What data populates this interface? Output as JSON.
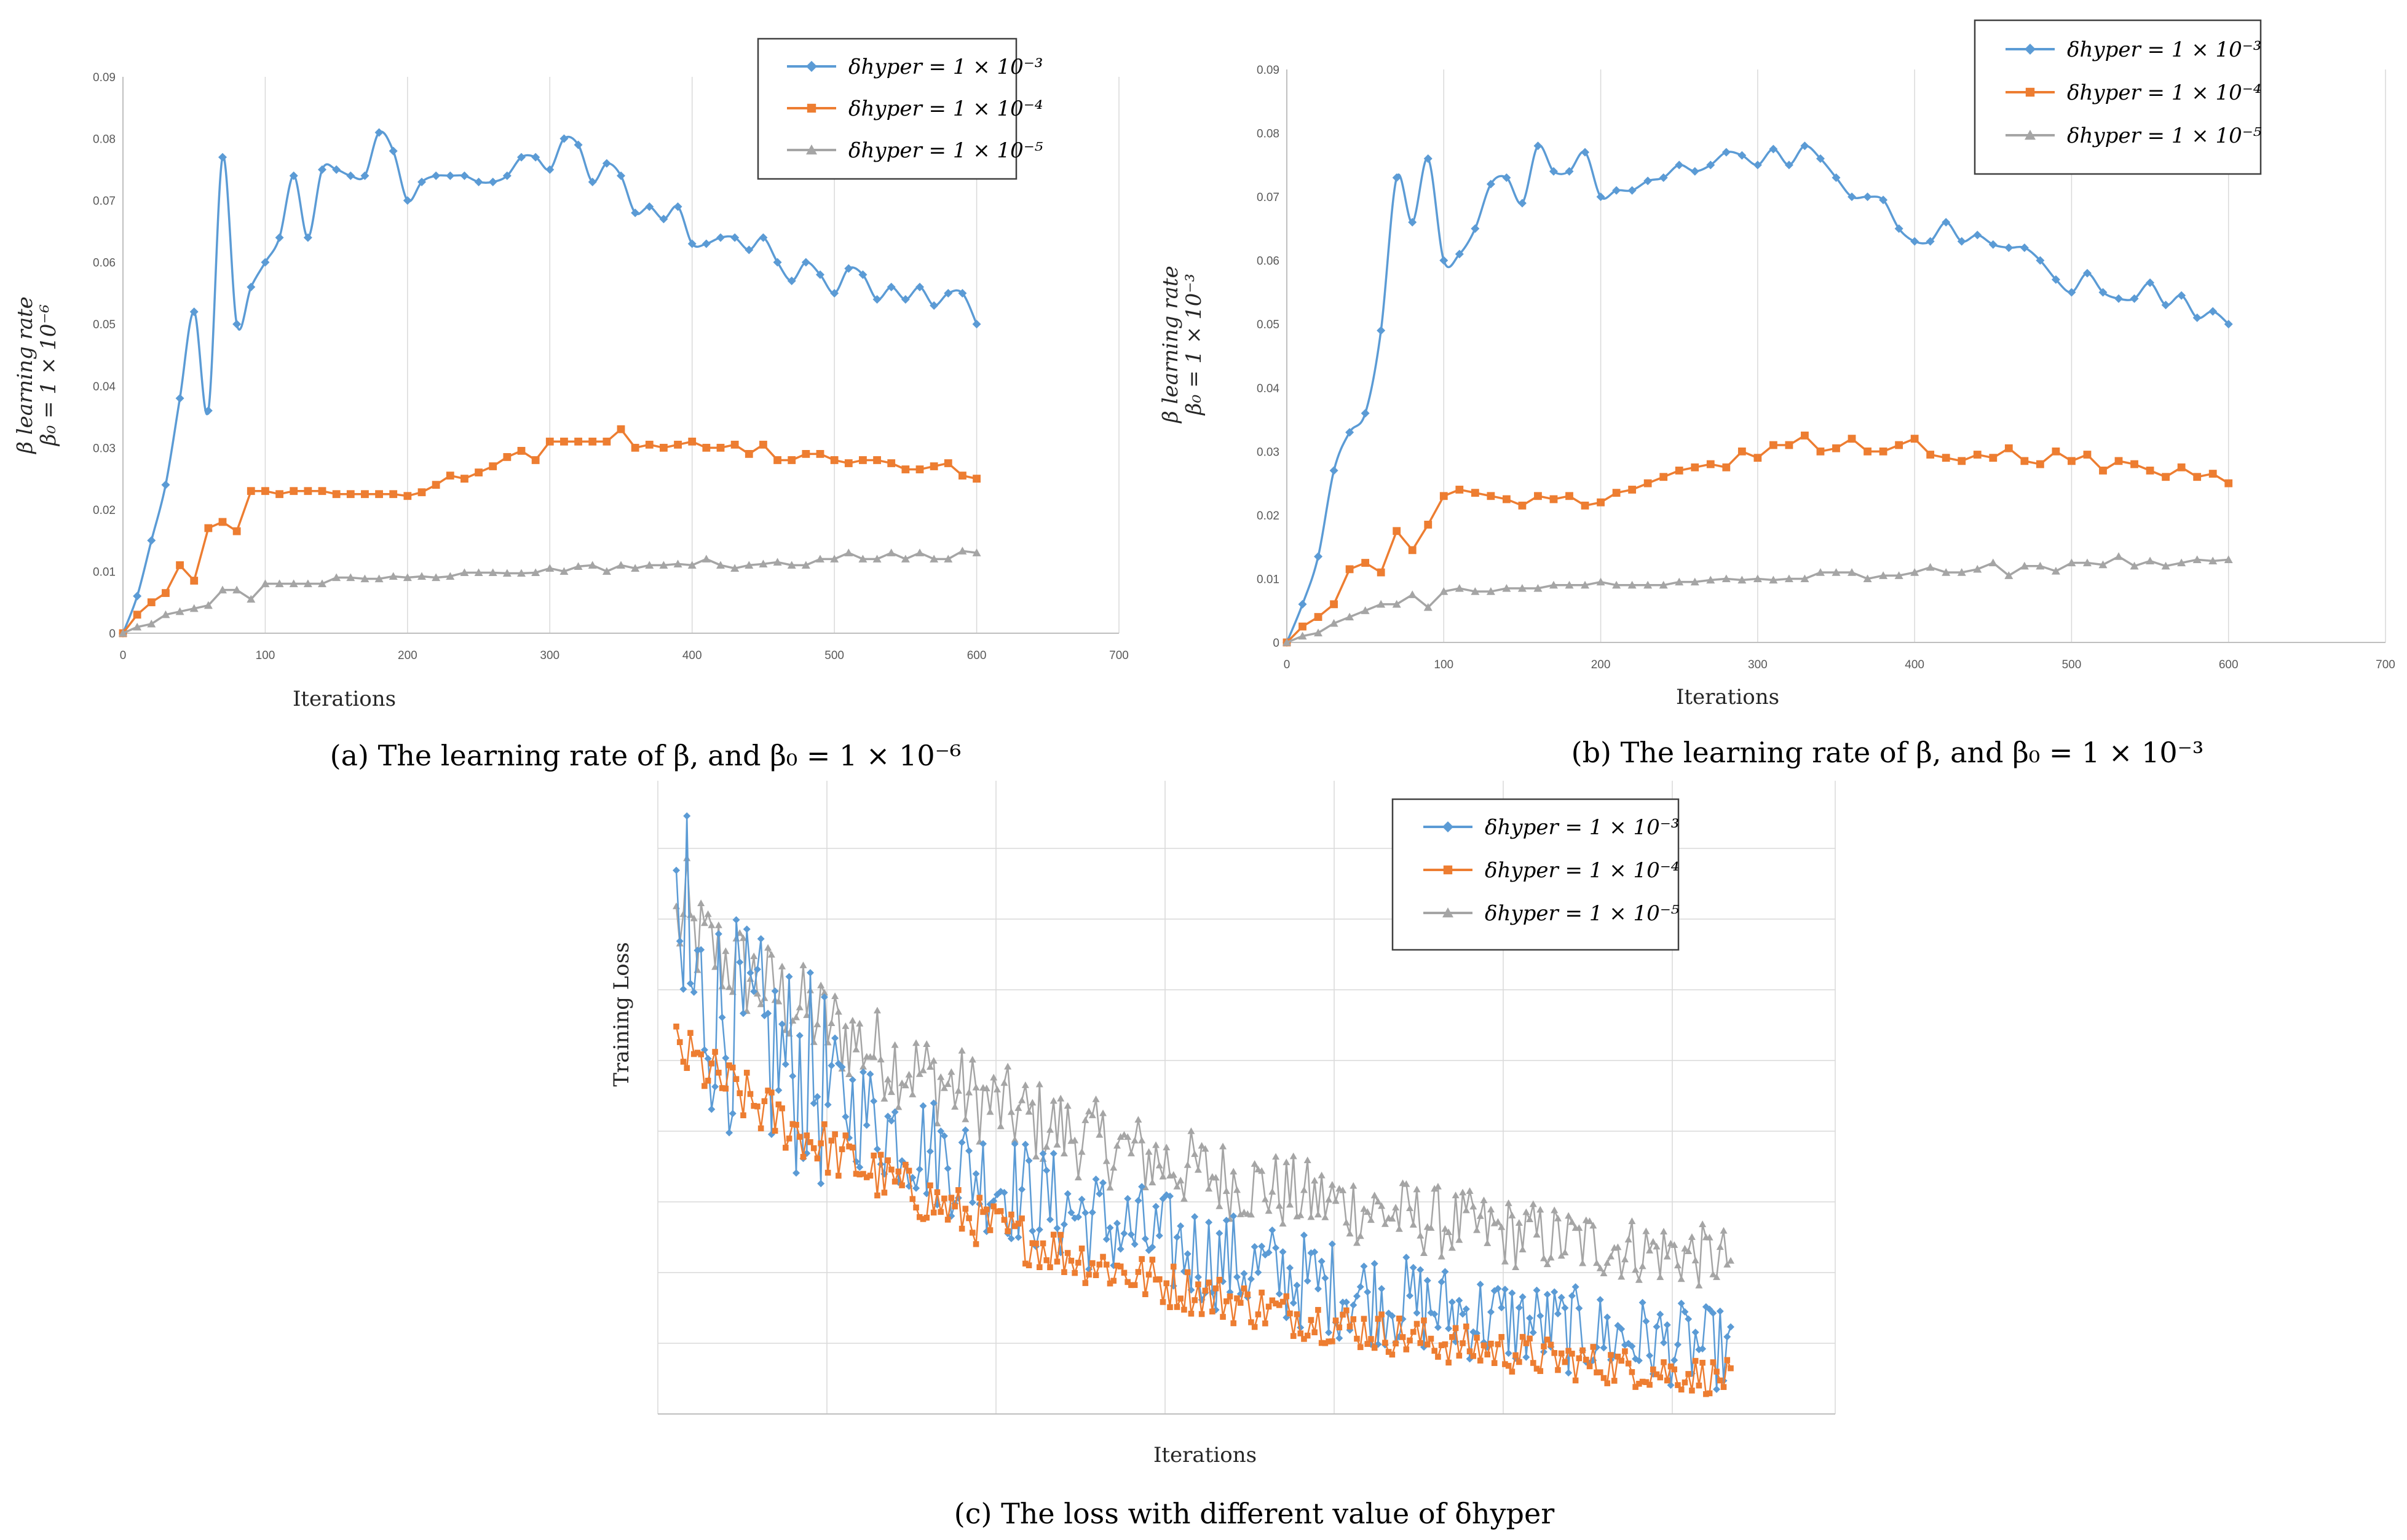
{
  "colors": {
    "series1": "#5B9BD5",
    "series2": "#ED7D31",
    "series3": "#A5A5A5",
    "grid": "#D9D9D9",
    "axis": "#BFBFBF"
  },
  "legend_labels": [
    "δhyper = 1 × 10⁻³",
    "δhyper = 1 × 10⁻⁴",
    "δhyper = 1 × 10⁻⁵"
  ],
  "chart_data": [
    {
      "type": "line",
      "caption": "(a) The learning rate of β, and β₀ = 1 × 10⁻⁶",
      "xlabel": "Iterations",
      "ylabel": "β learning rate",
      "ylabel2": "β₀ = 1 × 10⁻⁶",
      "xlim": [
        0,
        700
      ],
      "ylim": [
        0,
        0.09
      ],
      "xticks": [
        0,
        100,
        200,
        300,
        400,
        500,
        600,
        700
      ],
      "yticks": [
        0,
        0.01,
        0.02,
        0.03,
        0.04,
        0.05,
        0.06,
        0.07,
        0.08,
        0.09
      ],
      "ytick_labels": [
        "0",
        "0.01",
        "0.02",
        "0.03",
        "0.04",
        "0.05",
        "0.06",
        "0.07",
        "0.08",
        "0.09"
      ],
      "legend_position": "top-right",
      "grid": true,
      "x": [
        0,
        10,
        20,
        30,
        40,
        50,
        60,
        70,
        80,
        90,
        100,
        110,
        120,
        130,
        140,
        150,
        160,
        170,
        180,
        190,
        200,
        210,
        220,
        230,
        240,
        250,
        260,
        270,
        280,
        290,
        300,
        310,
        320,
        330,
        340,
        350,
        360,
        370,
        380,
        390,
        400,
        410,
        420,
        430,
        440,
        450,
        460,
        470,
        480,
        490,
        500,
        510,
        520,
        530,
        540,
        550,
        560,
        570,
        580,
        590,
        600
      ],
      "series": [
        {
          "name": "δhyper = 1 × 10⁻³",
          "values": [
            0,
            0.006,
            0.015,
            0.024,
            0.038,
            0.052,
            0.036,
            0.077,
            0.05,
            0.056,
            0.06,
            0.064,
            0.074,
            0.064,
            0.075,
            0.075,
            0.074,
            0.074,
            0.081,
            0.078,
            0.07,
            0.073,
            0.074,
            0.074,
            0.074,
            0.073,
            0.073,
            0.074,
            0.077,
            0.077,
            0.075,
            0.08,
            0.079,
            0.073,
            0.076,
            0.074,
            0.068,
            0.069,
            0.067,
            0.069,
            0.063,
            0.063,
            0.064,
            0.064,
            0.062,
            0.064,
            0.06,
            0.057,
            0.06,
            0.058,
            0.055,
            0.059,
            0.058,
            0.054,
            0.056,
            0.054,
            0.056,
            0.053,
            0.055,
            0.055,
            0.05
          ]
        },
        {
          "name": "δhyper = 1 × 10⁻⁴",
          "values": [
            0,
            0.003,
            0.005,
            0.0065,
            0.011,
            0.0085,
            0.017,
            0.018,
            0.0165,
            0.023,
            0.023,
            0.0225,
            0.023,
            0.023,
            0.023,
            0.0225,
            0.0225,
            0.0225,
            0.0225,
            0.0225,
            0.0222,
            0.0228,
            0.024,
            0.0255,
            0.025,
            0.026,
            0.027,
            0.0285,
            0.0295,
            0.028,
            0.031,
            0.031,
            0.031,
            0.031,
            0.031,
            0.033,
            0.03,
            0.0305,
            0.03,
            0.0305,
            0.031,
            0.03,
            0.03,
            0.0305,
            0.029,
            0.0305,
            0.028,
            0.028,
            0.029,
            0.029,
            0.028,
            0.0275,
            0.028,
            0.028,
            0.0275,
            0.0265,
            0.0265,
            0.027,
            0.0275,
            0.0255,
            0.025
          ]
        },
        {
          "name": "δhyper = 1 × 10⁻⁵",
          "values": [
            0,
            0.001,
            0.0015,
            0.003,
            0.0035,
            0.004,
            0.0045,
            0.007,
            0.007,
            0.0055,
            0.008,
            0.008,
            0.008,
            0.008,
            0.008,
            0.009,
            0.009,
            0.0088,
            0.0088,
            0.0092,
            0.009,
            0.0092,
            0.009,
            0.0092,
            0.0098,
            0.0098,
            0.0098,
            0.0097,
            0.0097,
            0.0098,
            0.0105,
            0.01,
            0.0108,
            0.011,
            0.01,
            0.011,
            0.0105,
            0.011,
            0.011,
            0.0112,
            0.011,
            0.012,
            0.011,
            0.0105,
            0.011,
            0.0112,
            0.0115,
            0.011,
            0.011,
            0.012,
            0.012,
            0.013,
            0.012,
            0.012,
            0.013,
            0.012,
            0.013,
            0.012,
            0.012,
            0.0133,
            0.013
          ]
        }
      ]
    },
    {
      "type": "line",
      "caption": "(b) The learning rate of β, and β₀ = 1 × 10⁻³",
      "xlabel": "Iterations",
      "ylabel": "β learning rate",
      "ylabel2": "β₀ = 1 × 10⁻³",
      "xlim": [
        0,
        700
      ],
      "ylim": [
        0,
        0.09
      ],
      "xticks": [
        0,
        100,
        200,
        300,
        400,
        500,
        600,
        700
      ],
      "yticks": [
        0,
        0.01,
        0.02,
        0.03,
        0.04,
        0.05,
        0.06,
        0.07,
        0.08,
        0.09
      ],
      "ytick_labels": [
        "0",
        "0.01",
        "0.02",
        "0.03",
        "0.04",
        "0.05",
        "0.06",
        "0.07",
        "0.08",
        "0.09"
      ],
      "legend_position": "top-right",
      "grid": true,
      "x": [
        0,
        10,
        20,
        30,
        40,
        50,
        60,
        70,
        80,
        90,
        100,
        110,
        120,
        130,
        140,
        150,
        160,
        170,
        180,
        190,
        200,
        210,
        220,
        230,
        240,
        250,
        260,
        270,
        280,
        290,
        300,
        310,
        320,
        330,
        340,
        350,
        360,
        370,
        380,
        390,
        400,
        410,
        420,
        430,
        440,
        450,
        460,
        470,
        480,
        490,
        500,
        510,
        520,
        530,
        540,
        550,
        560,
        570,
        580,
        590,
        600
      ],
      "series": [
        {
          "name": "δhyper = 1 × 10⁻³",
          "values": [
            0,
            0.006,
            0.0135,
            0.027,
            0.033,
            0.036,
            0.049,
            0.073,
            0.066,
            0.076,
            0.06,
            0.061,
            0.065,
            0.072,
            0.073,
            0.069,
            0.078,
            0.074,
            0.074,
            0.077,
            0.07,
            0.071,
            0.071,
            0.0725,
            0.073,
            0.075,
            0.074,
            0.075,
            0.077,
            0.0765,
            0.075,
            0.0775,
            0.075,
            0.078,
            0.076,
            0.073,
            0.07,
            0.07,
            0.0695,
            0.065,
            0.063,
            0.063,
            0.066,
            0.063,
            0.064,
            0.0625,
            0.062,
            0.062,
            0.06,
            0.057,
            0.055,
            0.058,
            0.055,
            0.054,
            0.054,
            0.0565,
            0.053,
            0.0545,
            0.051,
            0.052,
            0.05
          ]
        },
        {
          "name": "δhyper = 1 × 10⁻⁴",
          "values": [
            0,
            0.0025,
            0.004,
            0.006,
            0.0115,
            0.0125,
            0.011,
            0.0175,
            0.0145,
            0.0185,
            0.023,
            0.024,
            0.0235,
            0.023,
            0.0225,
            0.0215,
            0.023,
            0.0225,
            0.023,
            0.0215,
            0.022,
            0.0235,
            0.024,
            0.025,
            0.026,
            0.027,
            0.0275,
            0.028,
            0.0275,
            0.03,
            0.029,
            0.031,
            0.031,
            0.0325,
            0.03,
            0.0305,
            0.032,
            0.03,
            0.03,
            0.031,
            0.032,
            0.0295,
            0.029,
            0.0285,
            0.0295,
            0.029,
            0.0305,
            0.0285,
            0.028,
            0.03,
            0.0285,
            0.0295,
            0.027,
            0.0285,
            0.028,
            0.027,
            0.026,
            0.0275,
            0.026,
            0.0265,
            0.025
          ]
        },
        {
          "name": "δhyper = 1 × 10⁻⁵",
          "values": [
            0,
            0.001,
            0.0015,
            0.003,
            0.004,
            0.005,
            0.006,
            0.006,
            0.0075,
            0.0055,
            0.008,
            0.0085,
            0.008,
            0.008,
            0.0085,
            0.0085,
            0.0085,
            0.009,
            0.009,
            0.009,
            0.0095,
            0.009,
            0.009,
            0.009,
            0.009,
            0.0095,
            0.0095,
            0.0098,
            0.01,
            0.0098,
            0.01,
            0.0098,
            0.01,
            0.01,
            0.011,
            0.011,
            0.011,
            0.01,
            0.0105,
            0.0105,
            0.011,
            0.0118,
            0.011,
            0.011,
            0.0115,
            0.0125,
            0.0105,
            0.012,
            0.012,
            0.0112,
            0.0125,
            0.0125,
            0.0122,
            0.0135,
            0.012,
            0.0128,
            0.012,
            0.0125,
            0.013,
            0.0128,
            0.013
          ]
        }
      ]
    },
    {
      "type": "line",
      "caption": "(c) The loss with different value of δhyper",
      "xlabel": "Iterations",
      "ylabel": "Training Loss",
      "xlim": [
        0,
        1000
      ],
      "ylim": [
        0,
        1
      ],
      "xticks": [],
      "yticks": [],
      "legend_position": "top-right",
      "grid": true,
      "n_points": 300,
      "series": [
        {
          "name": "δhyper = 1 × 10⁻³",
          "start": 0.62,
          "end": 0.09,
          "amplitude": 0.09,
          "peak": 0.85
        },
        {
          "name": "δhyper = 1 × 10⁻⁴",
          "start": 0.52,
          "end": 0.05,
          "amplitude": 0.04
        },
        {
          "name": "δhyper = 1 × 10⁻⁵",
          "start": 0.7,
          "end": 0.22,
          "amplitude": 0.07,
          "peak": 0.79
        }
      ]
    }
  ]
}
